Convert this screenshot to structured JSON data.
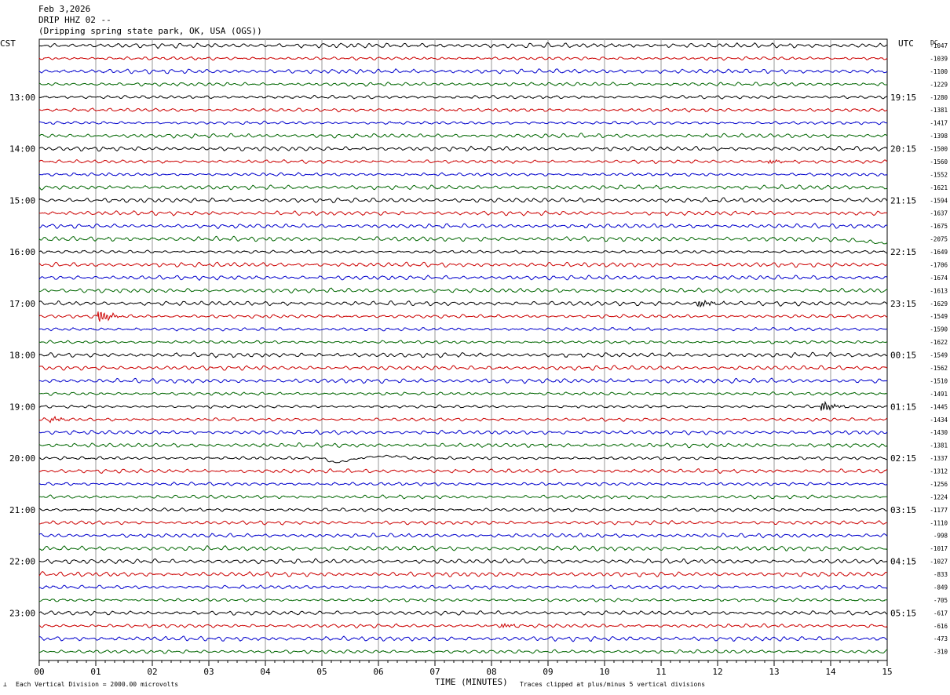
{
  "header": {
    "date": "Feb 3,2026",
    "station": "DRIP HHZ 02 --",
    "location": "(Dripping spring state park, OK, USA (OGS))"
  },
  "left_axis_label": "CST",
  "right_axis_label": "UTC",
  "dc_label": "DC",
  "footer": {
    "scale": "Each Vertical Division = 2000.00 microvolts",
    "xlabel": "TIME (MINUTES)",
    "clip_note": "Traces clipped at plus/minus 5 vertical divisions"
  },
  "colors": {
    "cycle": [
      "#000000",
      "#cc0000",
      "#0000cc",
      "#006600"
    ],
    "grid": "#999999"
  },
  "chart_data": {
    "type": "line",
    "title": "",
    "xlabel": "TIME (MINUTES)",
    "xlim": [
      0,
      15
    ],
    "x_ticks": [
      "00",
      "01",
      "02",
      "03",
      "04",
      "05",
      "06",
      "07",
      "08",
      "09",
      "10",
      "11",
      "12",
      "13",
      "14",
      "15"
    ],
    "minutes_per_trace": 15,
    "trace_count": 48,
    "cst_labels": [
      "13:00",
      "14:00",
      "15:00",
      "16:00",
      "17:00",
      "18:00",
      "19:00",
      "20:00",
      "21:00",
      "22:00",
      "23:00"
    ],
    "utc_labels": [
      "19:15",
      "20:15",
      "21:15",
      "22:15",
      "23:15",
      "00:15",
      "01:15",
      "02:15",
      "03:15",
      "04:15",
      "05:15"
    ],
    "dc_offsets": [
      "-1047",
      "-1039",
      "-1100",
      "-1229",
      "-1280",
      "-1381",
      "-1417",
      "-1398",
      "-1500",
      "-1560",
      "-1552",
      "-1621",
      "-1594",
      "-1637",
      "-1675",
      "-2075",
      "-1649",
      "-1706",
      "-1674",
      "-1613",
      "-1629",
      "-1549",
      "-1590",
      "-1622",
      "-1549",
      "-1562",
      "-1510",
      "-1491",
      "-1445",
      "-1434",
      "-1430",
      "-1381",
      "-1337",
      "-1312",
      "-1256",
      "-1224",
      "-1177",
      "-1110",
      "-998",
      "-1017",
      "-1027",
      "-833",
      "-849",
      "-705",
      "-617",
      "-616",
      "-473",
      "-310"
    ],
    "events": [
      {
        "trace": 21,
        "minute": 1.05,
        "amplitude": 1.0
      },
      {
        "trace": 20,
        "minute": 11.65,
        "amplitude": 0.6
      },
      {
        "trace": 28,
        "minute": 13.85,
        "amplitude": 0.8
      },
      {
        "trace": 29,
        "minute": 0.2,
        "amplitude": 0.4
      },
      {
        "trace": 9,
        "minute": 12.9,
        "amplitude": 0.3
      },
      {
        "trace": 45,
        "minute": 8.2,
        "amplitude": 0.3
      }
    ],
    "long_period_dip": {
      "trace": 32,
      "start_minute": 5.0,
      "center_minute": 5.25,
      "end_minute": 6.5
    }
  }
}
